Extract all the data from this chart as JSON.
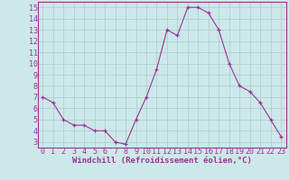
{
  "x": [
    0,
    1,
    2,
    3,
    4,
    5,
    6,
    7,
    8,
    9,
    10,
    11,
    12,
    13,
    14,
    15,
    16,
    17,
    18,
    19,
    20,
    21,
    22,
    23
  ],
  "y": [
    7.0,
    6.5,
    5.0,
    4.5,
    4.5,
    4.0,
    4.0,
    3.0,
    2.8,
    5.0,
    7.0,
    9.5,
    13.0,
    12.5,
    15.0,
    15.0,
    14.5,
    13.0,
    10.0,
    8.0,
    7.5,
    6.5,
    5.0,
    3.5
  ],
  "xlabel": "Windchill (Refroidissement éolien,°C)",
  "xlim": [
    -0.5,
    23.5
  ],
  "ylim": [
    2.5,
    15.5
  ],
  "yticks": [
    3,
    4,
    5,
    6,
    7,
    8,
    9,
    10,
    11,
    12,
    13,
    14,
    15
  ],
  "xticks": [
    0,
    1,
    2,
    3,
    4,
    5,
    6,
    7,
    8,
    9,
    10,
    11,
    12,
    13,
    14,
    15,
    16,
    17,
    18,
    19,
    20,
    21,
    22,
    23
  ],
  "line_color": "#993399",
  "marker": "+",
  "bg_color": "#cce8e8",
  "grid_color": "#aacccc",
  "label_color": "#993399",
  "tick_label_color": "#993399",
  "xlabel_fontsize": 6.5,
  "tick_fontsize": 6.0,
  "spine_color": "#993399"
}
